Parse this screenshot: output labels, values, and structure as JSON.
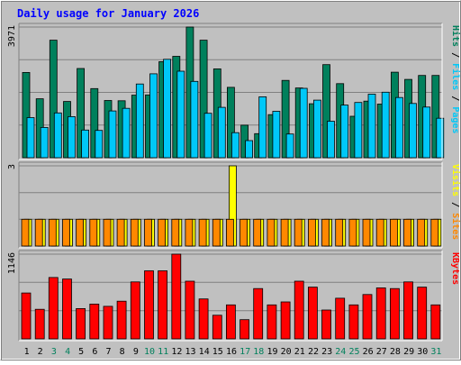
{
  "chart_data": {
    "type": "bar",
    "title": "Daily usage for January 2026",
    "x": [
      "1",
      "2",
      "3",
      "4",
      "5",
      "6",
      "7",
      "8",
      "9",
      "10",
      "11",
      "12",
      "13",
      "14",
      "15",
      "16",
      "17",
      "18",
      "19",
      "20",
      "21",
      "22",
      "23",
      "24",
      "25",
      "26",
      "27",
      "28",
      "29",
      "30",
      "31"
    ],
    "weekend_days": [
      3,
      4,
      10,
      11,
      17,
      18,
      24,
      25,
      31
    ],
    "grid": true,
    "panels": [
      {
        "id": "hits",
        "ymax_label": "3971",
        "ylim": [
          0,
          3971
        ],
        "ylabel_parts": [
          {
            "text": "Pages",
            "color": "#00c8f8"
          },
          {
            "text": " / ",
            "color": "#000000"
          },
          {
            "text": "Files",
            "color": "#00c8f8"
          },
          {
            "text": " / ",
            "color": "#000000"
          },
          {
            "text": "Hits",
            "color": "#00805c"
          }
        ],
        "series": [
          {
            "name": "Hits",
            "color": "#00805c",
            "values": [
              2590,
              1790,
              3570,
              1710,
              2710,
              2100,
              1740,
              1730,
              1900,
              1910,
              2920,
              3080,
              3971,
              3570,
              2700,
              2140,
              990,
              730,
              1310,
              2350,
              2120,
              1640,
              2830,
              2250,
              1260,
              1720,
              1630,
              2600,
              2380,
              2500,
              2500
            ]
          },
          {
            "name": "Files",
            "color": "#00c8f8",
            "values": [
              1220,
              920,
              1360,
              1250,
              840,
              830,
              1420,
              1500,
              2240,
              2550,
              2990,
              2630,
              2320,
              1350,
              1530,
              760,
              520,
              1850,
              1410,
              720,
              2110,
              1750,
              1110,
              1600,
              1680,
              1930,
              1990,
              1830,
              1650,
              1540,
              1200
            ]
          },
          {
            "name": "Pages",
            "color": "#00c8f8",
            "values": []
          }
        ]
      },
      {
        "id": "visits",
        "ymax_label": "3",
        "ylim": [
          0,
          3
        ],
        "ylabel_parts": [
          {
            "text": "Sites",
            "color": "#ff8800"
          },
          {
            "text": " / ",
            "color": "#000000"
          },
          {
            "text": "Visits",
            "color": "#ffff00"
          }
        ],
        "series": [
          {
            "name": "Visits",
            "color": "#ffff00",
            "values": [
              1,
              1,
              1,
              1,
              1,
              1,
              1,
              1,
              1,
              1,
              1,
              1,
              1,
              1,
              1,
              3,
              1,
              1,
              1,
              1,
              1,
              1,
              1,
              1,
              1,
              1,
              1,
              1,
              1,
              1,
              1
            ]
          },
          {
            "name": "Sites",
            "color": "#ff8800",
            "values": [
              1,
              1,
              1,
              1,
              1,
              1,
              1,
              1,
              1,
              1,
              1,
              1,
              1,
              1,
              1,
              1,
              1,
              1,
              1,
              1,
              1,
              1,
              1,
              1,
              1,
              1,
              1,
              1,
              1,
              1,
              1
            ]
          }
        ]
      },
      {
        "id": "kbytes",
        "ymax_label": "1146",
        "ylim": [
          0,
          1146
        ],
        "ylabel_parts": [
          {
            "text": "KBytes",
            "color": "#ff0000"
          }
        ],
        "series": [
          {
            "name": "KBytes",
            "color": "#ff0000",
            "values": [
              620,
              400,
              830,
              810,
              410,
              470,
              440,
              510,
              770,
              920,
              920,
              1146,
              780,
              540,
              320,
              460,
              260,
              680,
              460,
              500,
              780,
              700,
              390,
              550,
              460,
              600,
              690,
              680,
              770,
              700,
              460
            ]
          }
        ]
      }
    ],
    "colors": {
      "frame": "#c0c0c0",
      "plot_bg": "#c0c0c0",
      "gridline": "#808080",
      "title": "#0000ff",
      "axis_text": "#000000",
      "weekday_label": "#000000",
      "weekend_label": "#00805c"
    }
  }
}
